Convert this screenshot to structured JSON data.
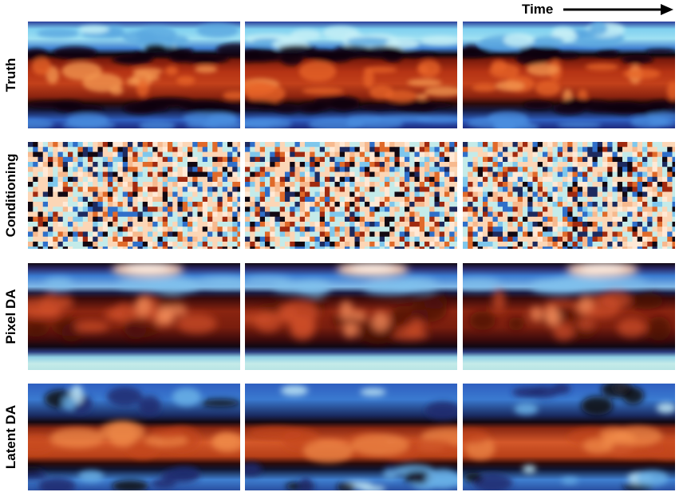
{
  "header": {
    "time_label": "Time"
  },
  "rows": [
    {
      "key": "truth",
      "label": "Truth",
      "type": "truth"
    },
    {
      "key": "conditioning",
      "label": "Conditioning",
      "type": "cond"
    },
    {
      "key": "pixel_da",
      "label": "Pixel DA",
      "type": "pixel"
    },
    {
      "key": "latent_da",
      "label": "Latent DA",
      "type": "latent"
    }
  ],
  "colors": {
    "deep_red": "#4a0a06",
    "red": "#a02a10",
    "orange": "#e06a2a",
    "light_orange": "#f7b98e",
    "peach": "#fcd6b6",
    "black": "#120812",
    "navy": "#1d2a5e",
    "blue": "#2f6fc9",
    "light_blue": "#7fc7ec",
    "pale_cyan": "#c4ebe9"
  }
}
